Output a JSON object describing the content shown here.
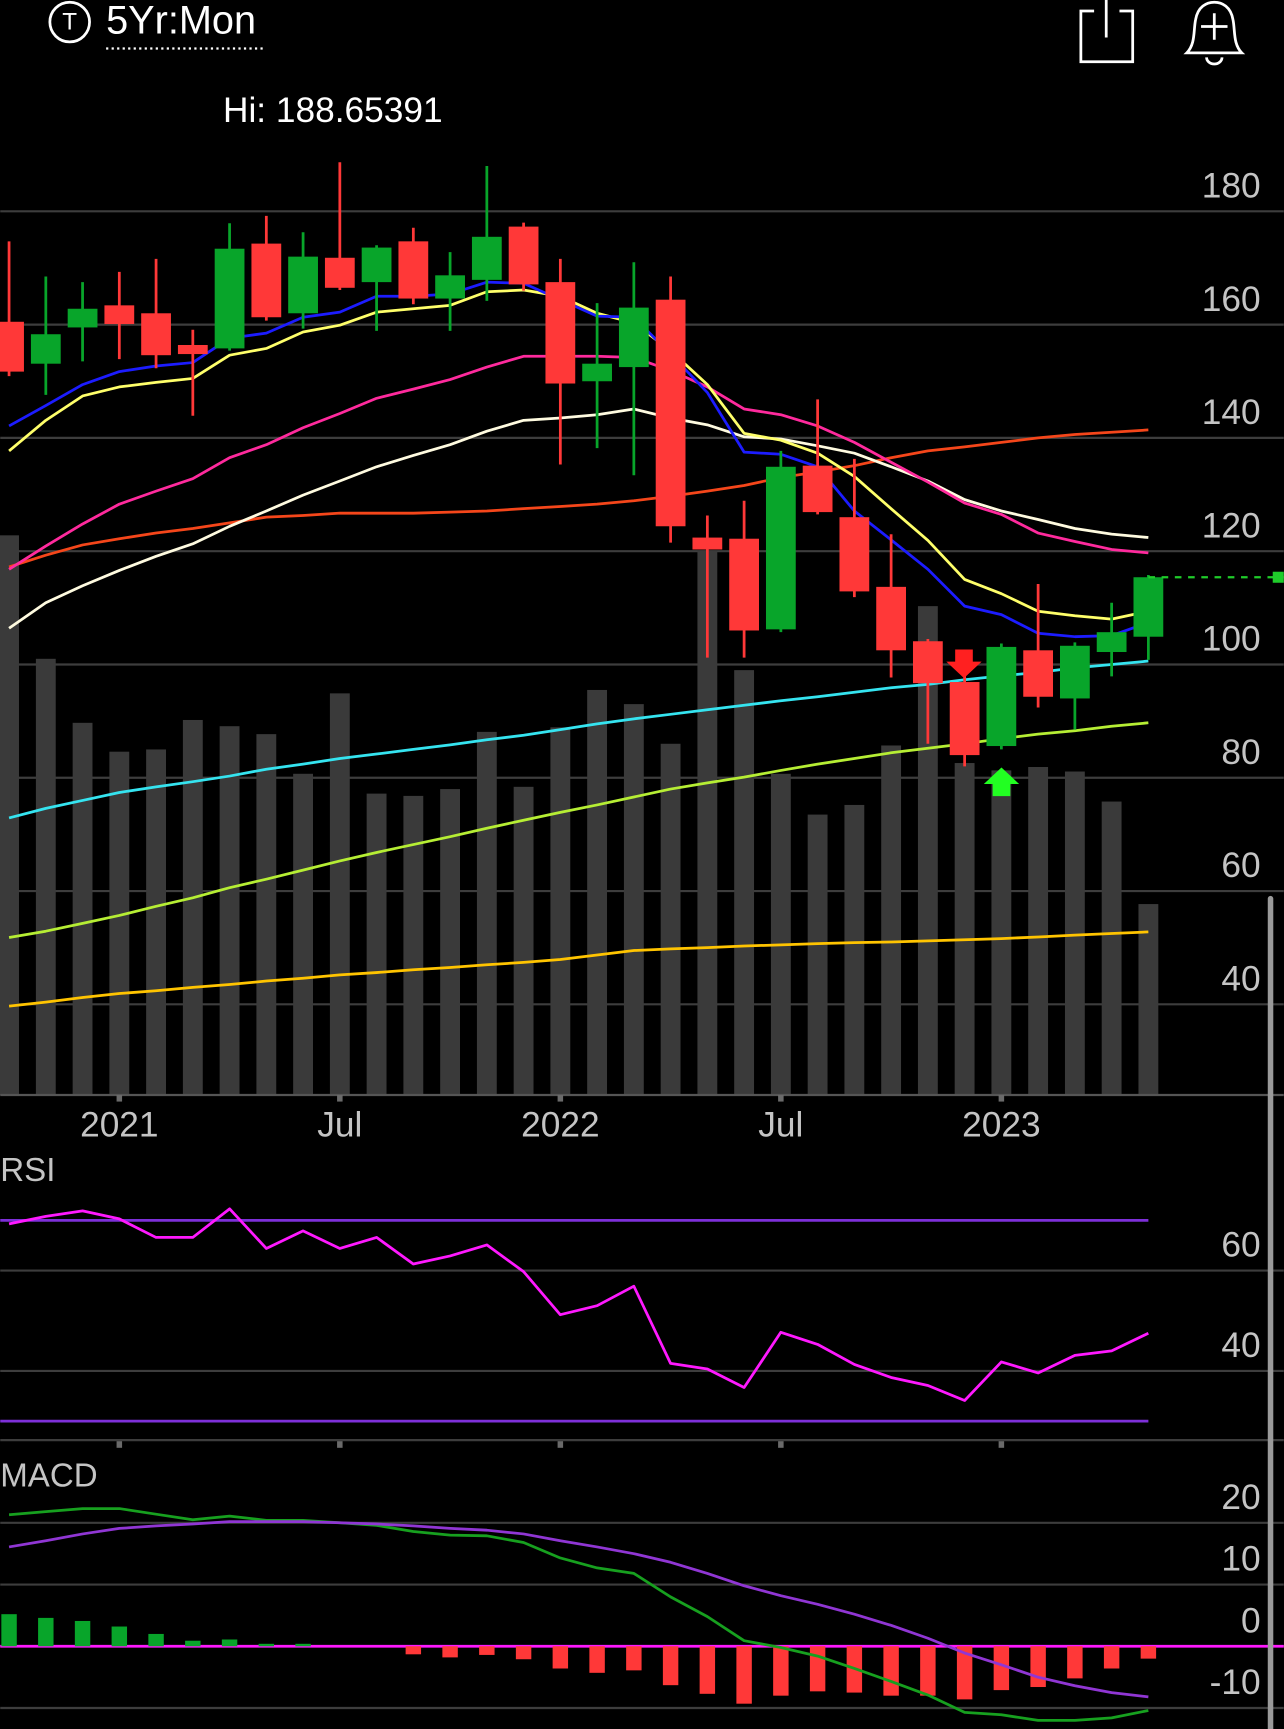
{
  "header": {
    "icon_letter": "T",
    "timeframe": "5Yr:Mon"
  },
  "chart_data": [
    {
      "type": "candlestick",
      "annotation": "Hi: 188.65391",
      "categories": [
        null,
        null,
        null,
        "2021",
        null,
        null,
        null,
        null,
        null,
        "Jul",
        null,
        null,
        null,
        null,
        null,
        "2022",
        null,
        null,
        null,
        null,
        null,
        "Jul",
        null,
        null,
        null,
        null,
        null,
        "2023",
        null,
        null,
        null,
        null
      ],
      "open": [
        160.5,
        153.1,
        159.5,
        163.4,
        162.0,
        156.4,
        155.8,
        174.3,
        162.0,
        171.8,
        167.5,
        174.7,
        164.6,
        167.9,
        177.3,
        167.5,
        150.0,
        152.5,
        164.4,
        122.4,
        122.2,
        106.2,
        135.1,
        126.0,
        113.7,
        104.1,
        96.9,
        85.6,
        102.5,
        94.0,
        102.2,
        104.9
      ],
      "high": [
        174.7,
        168.5,
        167.5,
        169.3,
        171.6,
        159.1,
        177.9,
        179.2,
        176.3,
        188.65391,
        174.0,
        177.1,
        172.8,
        188.0,
        178.0,
        171.6,
        163.8,
        171.0,
        168.5,
        126.3,
        128.9,
        137.7,
        146.8,
        136.3,
        123.0,
        104.5,
        99.4,
        103.7,
        114.2,
        103.9,
        110.9,
        115.8
      ],
      "low": [
        150.9,
        147.6,
        153.5,
        153.9,
        152.3,
        143.9,
        155.4,
        160.7,
        159.3,
        166.1,
        158.9,
        163.6,
        158.9,
        164.2,
        166.0,
        135.3,
        138.2,
        133.4,
        121.5,
        101.2,
        101.2,
        105.7,
        126.5,
        111.9,
        97.7,
        86.0,
        82.0,
        85.0,
        92.4,
        88.5,
        97.9,
        100.8
      ],
      "close": [
        151.7,
        158.3,
        162.8,
        160.1,
        154.6,
        154.8,
        173.4,
        161.3,
        172.0,
        166.5,
        173.6,
        164.6,
        168.7,
        175.5,
        167.1,
        149.6,
        153.1,
        163.0,
        124.4,
        120.3,
        106.0,
        134.9,
        126.9,
        112.9,
        102.5,
        96.7,
        84.0,
        103.1,
        94.3,
        103.3,
        105.7,
        115.4
      ],
      "up_color": "#08a52a",
      "down_color": "#ff3838",
      "volume": {
        "color": "#3a3a3a",
        "values": [
          122.8,
          101.0,
          89.7,
          84.6,
          85.0,
          90.2,
          89.1,
          87.7,
          80.7,
          94.9,
          77.2,
          76.8,
          78.0,
          88.1,
          78.4,
          88.9,
          95.5,
          93.0,
          86.0,
          120.1,
          99.0,
          80.7,
          73.5,
          75.2,
          85.7,
          110.3,
          82.6,
          81.3,
          81.9,
          81.1,
          75.8,
          57.7
        ]
      },
      "series": [
        {
          "color": "#ffc400",
          "values": [
            39.7,
            40.4,
            41.2,
            41.9,
            42.4,
            43.0,
            43.5,
            44.1,
            44.6,
            45.2,
            45.6,
            46.1,
            46.5,
            47.0,
            47.4,
            47.9,
            48.7,
            49.5,
            49.8,
            50.0,
            50.3,
            50.5,
            50.7,
            50.9,
            51.0,
            51.2,
            51.4,
            51.6,
            51.9,
            52.2,
            52.5,
            52.8
          ]
        },
        {
          "color": "#b6ee34",
          "values": [
            51.8,
            52.9,
            54.3,
            55.7,
            57.3,
            58.8,
            60.6,
            62.1,
            63.7,
            65.3,
            66.8,
            68.2,
            69.6,
            71.1,
            72.5,
            73.9,
            75.2,
            76.6,
            78.0,
            79.1,
            80.1,
            81.3,
            82.4,
            83.4,
            84.4,
            85.2,
            86.0,
            86.9,
            87.7,
            88.3,
            89.1,
            89.7
          ]
        },
        {
          "color": "#35e4f0",
          "values": [
            72.9,
            74.6,
            76.0,
            77.4,
            78.4,
            79.3,
            80.3,
            81.5,
            82.4,
            83.4,
            84.2,
            85.0,
            85.8,
            86.7,
            87.5,
            88.5,
            89.5,
            90.4,
            91.2,
            92.0,
            92.8,
            93.6,
            94.3,
            95.1,
            95.9,
            96.5,
            97.3,
            98.0,
            98.6,
            99.4,
            100.0,
            100.6
          ]
        },
        {
          "color": "#f5461a",
          "values": [
            117.2,
            119.3,
            121.1,
            122.2,
            123.2,
            124.0,
            125.0,
            126.0,
            126.3,
            126.7,
            126.7,
            126.7,
            126.9,
            127.1,
            127.5,
            127.9,
            128.3,
            128.9,
            129.7,
            130.6,
            131.6,
            133.0,
            134.0,
            135.1,
            136.5,
            137.7,
            138.4,
            139.2,
            140.0,
            140.6,
            141.0,
            141.4
          ]
        },
        {
          "color": "#fffbe0",
          "values": [
            106.4,
            110.9,
            113.9,
            116.6,
            119.1,
            121.3,
            124.4,
            127.1,
            129.9,
            132.4,
            134.9,
            136.9,
            138.8,
            141.2,
            143.1,
            143.5,
            144.1,
            145.1,
            143.5,
            142.3,
            140.2,
            139.8,
            138.6,
            137.3,
            134.9,
            132.4,
            129.1,
            127.1,
            125.6,
            124.0,
            123.0,
            122.4
          ]
        },
        {
          "color": "#ff2a9d",
          "values": [
            116.8,
            120.9,
            124.8,
            128.3,
            130.6,
            132.8,
            136.5,
            138.8,
            141.8,
            144.3,
            147.0,
            148.6,
            150.3,
            152.5,
            154.4,
            154.4,
            154.4,
            154.2,
            151.9,
            149.0,
            145.1,
            144.1,
            142.1,
            139.2,
            135.7,
            132.2,
            128.5,
            126.5,
            123.2,
            121.7,
            120.3,
            119.7
          ]
        },
        {
          "color": "#ffff6a",
          "values": [
            137.7,
            143.1,
            147.4,
            149.0,
            149.8,
            150.5,
            154.6,
            155.8,
            158.7,
            159.9,
            162.2,
            162.8,
            163.4,
            165.8,
            166.1,
            165.0,
            162.0,
            160.3,
            155.4,
            149.4,
            140.8,
            139.6,
            137.3,
            133.2,
            127.5,
            121.9,
            115.0,
            112.5,
            109.4,
            108.6,
            108.0,
            109.4
          ]
        },
        {
          "color": "#1c1cff",
          "values": [
            142.1,
            145.7,
            149.4,
            151.7,
            152.7,
            153.3,
            157.6,
            158.5,
            161.3,
            162.2,
            165.0,
            165.0,
            165.4,
            167.5,
            167.3,
            164.4,
            161.5,
            161.3,
            154.8,
            148.0,
            137.5,
            137.1,
            134.9,
            127.1,
            122.0,
            116.8,
            110.3,
            108.8,
            105.5,
            104.9,
            105.1,
            107.4
          ]
        }
      ],
      "last_price_color": "#1fcc2a",
      "ylim": [
        24,
        192
      ],
      "yticks": [
        40,
        60,
        80,
        100,
        120,
        140,
        160,
        180
      ],
      "grid": true
    },
    {
      "type": "line",
      "title": "RSI",
      "values": [
        69.3,
        70.8,
        71.9,
        70.3,
        66.6,
        66.6,
        72.3,
        64.4,
        67.9,
        64.4,
        66.6,
        61.3,
        62.9,
        65.1,
        59.8,
        51.2,
        53.0,
        56.9,
        41.5,
        40.4,
        36.7,
        47.7,
        45.3,
        41.3,
        38.7,
        37.1,
        34.1,
        41.8,
        39.6,
        43.1,
        44.0,
        47.5
      ],
      "color": "#ff19ff",
      "levels": [
        70,
        30
      ],
      "level_color": "#7d2fd8",
      "ylim": [
        26,
        84
      ],
      "yticks": [
        40,
        60
      ],
      "grid": true
    },
    {
      "type": "macd",
      "title": "MACD",
      "histogram": [
        5.2,
        4.6,
        4.1,
        3.2,
        2.0,
        0.9,
        1.1,
        0.4,
        0.4,
        0,
        0,
        -1.3,
        -1.8,
        -1.4,
        -2.1,
        -3.6,
        -4.3,
        -3.9,
        -6.3,
        -7.7,
        -9.3,
        -8.0,
        -7.3,
        -7.5,
        -8.0,
        -8.0,
        -8.6,
        -7.1,
        -6.6,
        -5.2,
        -3.6,
        -2.0
      ],
      "up_color": "#08a52a",
      "down_color": "#ff3838",
      "series": [
        {
          "color": "#17a01f",
          "values": [
            21.3,
            21.8,
            22.3,
            22.3,
            21.4,
            20.5,
            21.1,
            20.4,
            20.4,
            20.0,
            19.6,
            18.6,
            18.0,
            17.9,
            16.8,
            14.3,
            12.7,
            11.8,
            8.0,
            4.8,
            0.9,
            -0.2,
            -1.6,
            -3.6,
            -5.7,
            -7.9,
            -10.7,
            -11.1,
            -12.0,
            -12.0,
            -11.6,
            -10.4
          ]
        },
        {
          "color": "#9036d4",
          "values": [
            16.1,
            17.1,
            18.2,
            19.1,
            19.5,
            19.8,
            20.2,
            20.2,
            20.2,
            20.0,
            19.8,
            19.5,
            19.1,
            18.8,
            18.2,
            17.1,
            16.1,
            15.0,
            13.6,
            11.8,
            9.8,
            8.2,
            6.8,
            5.2,
            3.4,
            1.3,
            -1.1,
            -3.0,
            -5.0,
            -6.4,
            -7.5,
            -8.2
          ]
        }
      ],
      "zero_line_color": "#ff19ff",
      "ylim": [
        -13.4,
        30.9
      ],
      "yticks": [
        -10,
        0,
        10,
        20
      ],
      "grid": true
    }
  ]
}
